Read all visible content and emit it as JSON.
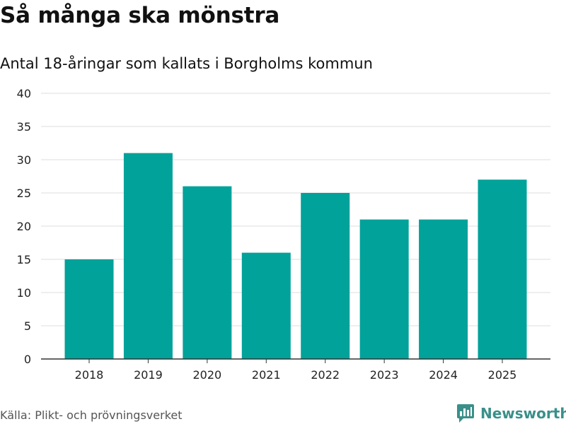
{
  "header": {
    "title": "Så många ska mönstra",
    "subtitle": "Antal 18-åringar som kallats i Borgholms kommun"
  },
  "footer": {
    "source": "Källa: Plikt- och prövningsverket",
    "brand": "Newsworthy"
  },
  "colors": {
    "bar": "#00a29a",
    "grid": "#dddddd",
    "axis": "#333333",
    "brand": "#3a8f8a"
  },
  "chart_data": {
    "type": "bar",
    "categories": [
      "2018",
      "2019",
      "2020",
      "2021",
      "2022",
      "2023",
      "2024",
      "2025"
    ],
    "values": [
      15,
      31,
      26,
      16,
      25,
      21,
      21,
      27
    ],
    "yticks": [
      "0",
      "5",
      "10",
      "15",
      "20",
      "25",
      "30",
      "35",
      "40"
    ],
    "ylim": [
      0,
      40
    ],
    "grid": true
  }
}
